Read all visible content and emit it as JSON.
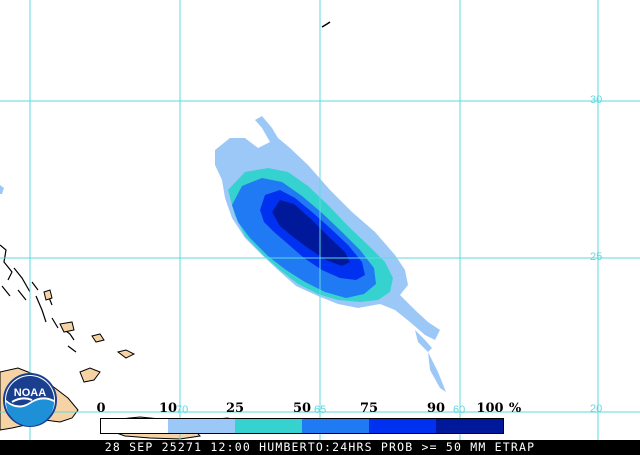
{
  "map": {
    "latitude_labels": [
      "30",
      "25",
      "20"
    ],
    "longitude_labels": [
      "70",
      "65",
      "60"
    ],
    "colors": {
      "background": "#ffffff",
      "gridlines": "#5fd9e0",
      "land": "#f6d3a5",
      "coastline": "#000000"
    }
  },
  "probability_field": {
    "variable": "24HRS PROB >= 50 MM",
    "levels": [
      {
        "min": 10,
        "color": "#9cc8f8"
      },
      {
        "min": 25,
        "color": "#36d2cf"
      },
      {
        "min": 50,
        "color": "#1f7af4"
      },
      {
        "min": 75,
        "color": "#0031f0"
      },
      {
        "min": 90,
        "color": "#00189a"
      }
    ]
  },
  "logo": {
    "text": "NOAA",
    "icon": "noaa-logo-icon"
  },
  "legend": {
    "values": [
      "0",
      "10",
      "25",
      "50",
      "75",
      "90",
      "100"
    ],
    "unit": "%",
    "colors": [
      "#ffffff",
      "#9cc8f8",
      "#36d2cf",
      "#1f7af4",
      "#0031f0",
      "#00189a"
    ]
  },
  "caption": "28 SEP 25271 12:00 HUMBERTO:24HRS PROB >= 50 MM ETRAP"
}
